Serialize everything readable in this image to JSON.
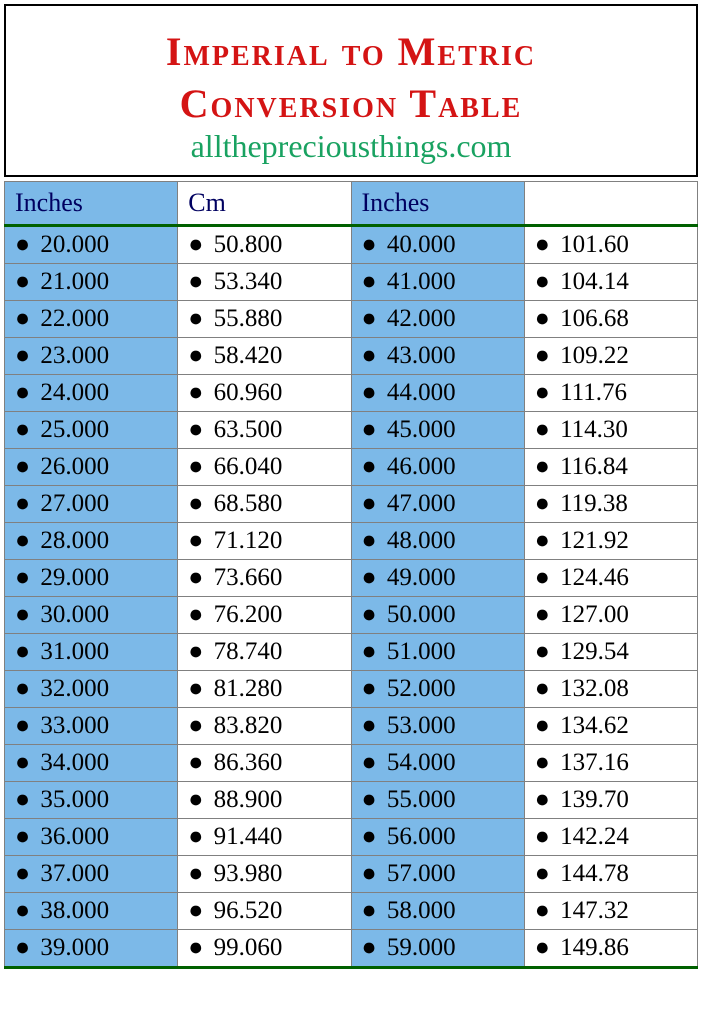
{
  "header": {
    "title_line1": "Imperial to Metric",
    "title_line2": "Conversion Table",
    "subtitle": "allthepreciousthings.com"
  },
  "table": {
    "headers": [
      "Inches",
      "Cm",
      "Inches",
      ""
    ],
    "column_bg": [
      "blue",
      "white",
      "blue",
      "white"
    ],
    "header_color": "#000060",
    "divider_color": "#006000",
    "blue_bg": "#7cb9e8",
    "white_bg": "#ffffff",
    "border_color": "#808080",
    "font_size_header": 26,
    "font_size_cell": 25,
    "rows": [
      [
        "20.000",
        "50.800",
        "40.000",
        "101.60"
      ],
      [
        "21.000",
        "53.340",
        "41.000",
        "104.14"
      ],
      [
        "22.000",
        "55.880",
        "42.000",
        "106.68"
      ],
      [
        "23.000",
        "58.420",
        "43.000",
        "109.22"
      ],
      [
        "24.000",
        "60.960",
        "44.000",
        "111.76"
      ],
      [
        "25.000",
        "63.500",
        "45.000",
        "114.30"
      ],
      [
        "26.000",
        "66.040",
        "46.000",
        "116.84"
      ],
      [
        "27.000",
        "68.580",
        "47.000",
        "119.38"
      ],
      [
        "28.000",
        "71.120",
        "48.000",
        "121.92"
      ],
      [
        "29.000",
        "73.660",
        "49.000",
        "124.46"
      ],
      [
        "30.000",
        "76.200",
        "50.000",
        "127.00"
      ],
      [
        "31.000",
        "78.740",
        "51.000",
        "129.54"
      ],
      [
        "32.000",
        "81.280",
        "52.000",
        "132.08"
      ],
      [
        "33.000",
        "83.820",
        "53.000",
        "134.62"
      ],
      [
        "34.000",
        "86.360",
        "54.000",
        "137.16"
      ],
      [
        "35.000",
        "88.900",
        "55.000",
        "139.70"
      ],
      [
        "36.000",
        "91.440",
        "56.000",
        "142.24"
      ],
      [
        "37.000",
        "93.980",
        "57.000",
        "144.78"
      ],
      [
        "38.000",
        "96.520",
        "58.000",
        "147.32"
      ],
      [
        "39.000",
        "99.060",
        "59.000",
        "149.86"
      ]
    ]
  },
  "styling": {
    "title_color": "#d41414",
    "subtitle_color": "#19a261",
    "title_fontsize": 40,
    "subtitle_fontsize": 32,
    "background": "#ffffff"
  }
}
